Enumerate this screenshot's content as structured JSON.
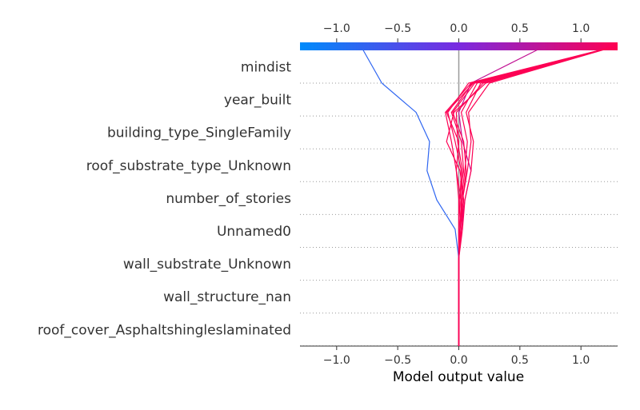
{
  "chart_data": {
    "type": "line",
    "subtype": "shap-decision-plot",
    "xlabel": "Model output value",
    "xlim": [
      -1.3,
      1.3
    ],
    "x_ticks": [
      -1.0,
      -0.5,
      0.0,
      0.5,
      1.0
    ],
    "x_tick_labels": [
      "−1.0",
      "−0.5",
      "0.0",
      "0.5",
      "1.0"
    ],
    "base_value": 0.0,
    "colormap": {
      "low": "#008bfb",
      "mid": "#7a2ae0",
      "high": "#ff0052"
    },
    "features": [
      "mindist",
      "year_built",
      "building_type_SingleFamily",
      "roof_substrate_type_Unknown",
      "number_of_stories",
      "Unnamed0",
      "wall_substrate_Unknown",
      "wall_structure_nan",
      "roof_cover_Asphaltshingleslaminated"
    ],
    "series": [
      {
        "values": [
          0.0,
          0.0,
          0.0,
          0.0,
          -0.03,
          -0.18,
          -0.26,
          -0.24,
          -0.35,
          -0.63,
          -0.8
        ]
      },
      {
        "values": [
          0.0,
          0.0,
          0.0,
          0.0,
          0.02,
          0.05,
          0.1,
          0.03,
          0.0,
          0.1,
          0.7
        ]
      },
      {
        "values": [
          0.0,
          0.0,
          0.0,
          0.0,
          0.03,
          0.05,
          0.1,
          0.12,
          0.06,
          0.18,
          1.28
        ]
      },
      {
        "values": [
          0.0,
          0.0,
          0.0,
          0.0,
          0.02,
          0.04,
          0.01,
          -0.1,
          -0.04,
          0.22,
          1.28
        ]
      },
      {
        "values": [
          0.0,
          0.0,
          0.0,
          0.0,
          0.01,
          0.03,
          0.06,
          0.04,
          -0.05,
          0.13,
          1.28
        ]
      },
      {
        "values": [
          0.0,
          0.0,
          0.0,
          0.0,
          0.01,
          0.02,
          -0.02,
          0.0,
          -0.1,
          0.12,
          1.28
        ]
      },
      {
        "values": [
          0.0,
          0.0,
          0.0,
          0.0,
          0.0,
          0.01,
          0.02,
          -0.03,
          -0.09,
          0.08,
          1.28
        ]
      },
      {
        "values": [
          0.0,
          0.0,
          0.0,
          0.0,
          0.01,
          0.02,
          0.05,
          0.07,
          0.02,
          0.15,
          1.28
        ]
      },
      {
        "values": [
          0.0,
          0.0,
          0.0,
          0.0,
          0.0,
          0.0,
          -0.02,
          -0.06,
          -0.11,
          0.1,
          1.28
        ]
      },
      {
        "values": [
          0.0,
          0.0,
          0.0,
          0.0,
          0.0,
          0.0,
          0.04,
          0.02,
          -0.06,
          0.11,
          1.28
        ]
      },
      {
        "values": [
          0.0,
          0.0,
          0.0,
          0.0,
          0.02,
          0.03,
          0.07,
          0.1,
          0.08,
          0.25,
          1.28
        ]
      },
      {
        "values": [
          0.0,
          0.0,
          0.0,
          0.0,
          0.01,
          0.02,
          0.03,
          -0.01,
          -0.02,
          0.2,
          1.28
        ]
      }
    ],
    "grid": "dotted horizontal lines at feature rows"
  }
}
